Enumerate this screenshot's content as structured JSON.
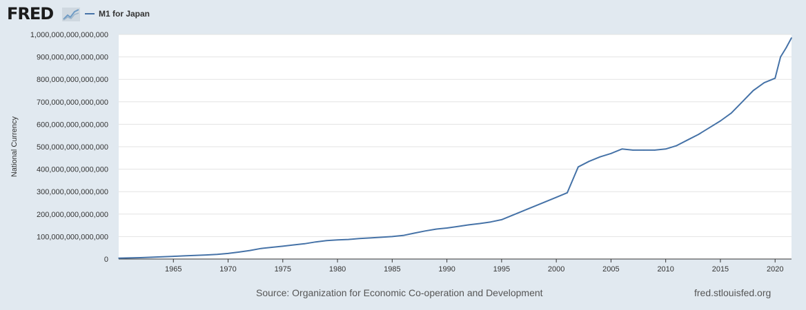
{
  "brand": {
    "logo_text": "FRED",
    "logo_mark": "line-chart-icon"
  },
  "legend": {
    "label": "M1 for Japan",
    "color": "#4572a7"
  },
  "footer": {
    "source": "Source: Organization for Economic Co-operation and Development",
    "site": "fred.stlouisfed.org"
  },
  "chart_data": {
    "type": "line",
    "title": "",
    "xlabel": "",
    "ylabel": "National Currency",
    "xlim": [
      1960,
      2021.5
    ],
    "ylim": [
      0,
      1000000000000000
    ],
    "y_ticks": [
      {
        "value": 0,
        "label": "0"
      },
      {
        "value": 100000000000000,
        "label": "100,000,000,000,000"
      },
      {
        "value": 200000000000000,
        "label": "200,000,000,000,000"
      },
      {
        "value": 300000000000000,
        "label": "300,000,000,000,000"
      },
      {
        "value": 400000000000000,
        "label": "400,000,000,000,000"
      },
      {
        "value": 500000000000000,
        "label": "500,000,000,000,000"
      },
      {
        "value": 600000000000000,
        "label": "600,000,000,000,000"
      },
      {
        "value": 700000000000000,
        "label": "700,000,000,000,000"
      },
      {
        "value": 800000000000000,
        "label": "800,000,000,000,000"
      },
      {
        "value": 900000000000000,
        "label": "900,000,000,000,000"
      },
      {
        "value": 1000000000000000,
        "label": "1,000,000,000,000,000"
      }
    ],
    "x_ticks": [
      {
        "value": 1965,
        "label": "1965"
      },
      {
        "value": 1970,
        "label": "1970"
      },
      {
        "value": 1975,
        "label": "1975"
      },
      {
        "value": 1980,
        "label": "1980"
      },
      {
        "value": 1985,
        "label": "1985"
      },
      {
        "value": 1990,
        "label": "1990"
      },
      {
        "value": 1995,
        "label": "1995"
      },
      {
        "value": 2000,
        "label": "2000"
      },
      {
        "value": 2005,
        "label": "2005"
      },
      {
        "value": 2010,
        "label": "2010"
      },
      {
        "value": 2015,
        "label": "2015"
      },
      {
        "value": 2020,
        "label": "2020"
      }
    ],
    "grid": true,
    "series": [
      {
        "name": "M1 for Japan",
        "color": "#4572a7",
        "x": [
          1960,
          1961,
          1962,
          1963,
          1964,
          1965,
          1966,
          1967,
          1968,
          1969,
          1970,
          1971,
          1972,
          1973,
          1974,
          1975,
          1976,
          1977,
          1978,
          1979,
          1980,
          1981,
          1982,
          1983,
          1984,
          1985,
          1986,
          1987,
          1988,
          1989,
          1990,
          1991,
          1992,
          1993,
          1994,
          1995,
          1996,
          1997,
          1998,
          1999,
          2000,
          2001,
          2002,
          2003,
          2004,
          2005,
          2006,
          2007,
          2008,
          2009,
          2010,
          2011,
          2012,
          2013,
          2014,
          2015,
          2016,
          2017,
          2018,
          2019,
          2020,
          2020.5,
          2021,
          2021.5
        ],
        "values": [
          4000000000000,
          5000000000000,
          6000000000000,
          8000000000000,
          10000000000000,
          12000000000000,
          14000000000000,
          16000000000000,
          18000000000000,
          21000000000000,
          25000000000000,
          31000000000000,
          38000000000000,
          47000000000000,
          52000000000000,
          57000000000000,
          63000000000000,
          68000000000000,
          76000000000000,
          82000000000000,
          85000000000000,
          87000000000000,
          91000000000000,
          94000000000000,
          97000000000000,
          100000000000000,
          105000000000000,
          115000000000000,
          125000000000000,
          133000000000000,
          138000000000000,
          145000000000000,
          152000000000000,
          158000000000000,
          165000000000000,
          175000000000000,
          195000000000000,
          215000000000000,
          235000000000000,
          255000000000000,
          275000000000000,
          295000000000000,
          410000000000000,
          435000000000000,
          455000000000000,
          470000000000000,
          490000000000000,
          485000000000000,
          485000000000000,
          485000000000000,
          490000000000000,
          505000000000000,
          530000000000000,
          555000000000000,
          585000000000000,
          615000000000000,
          650000000000000,
          700000000000000,
          750000000000000,
          785000000000000,
          805000000000000,
          900000000000000,
          940000000000000,
          985000000000000
        ]
      }
    ]
  }
}
